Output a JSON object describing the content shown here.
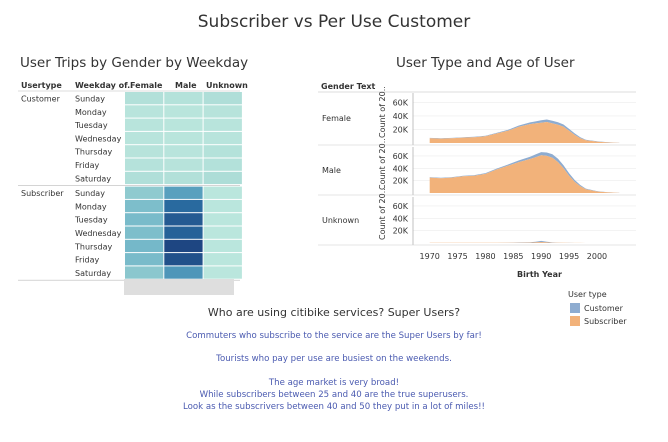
{
  "title": "Subscriber vs Per Use Customer",
  "heatmap_title": "User Trips by Gender by Weekday",
  "area_title": "User Type and Age of User",
  "story": {
    "title": "Who are using citibike services?  Super Users?",
    "lines": [
      "Commuters who subscribe to the service are the Super Users by far!",
      "Tourists who pay per use are busiest on the weekends.",
      "The age market is very broad!",
      "While subscribers between 25 and 40 are the true superusers.",
      "Look as the subscrivers between 40 and 50 they put in a lot of miles!!"
    ]
  },
  "legend": {
    "title": "User type",
    "items": [
      {
        "label": "Customer",
        "color": "#8eacd0"
      },
      {
        "label": "Subscriber",
        "color": "#f2b27a"
      }
    ]
  },
  "chart_data": [
    {
      "type": "heatmap",
      "title": "User Trips by Gender by Weekday",
      "columns": [
        "Usertype",
        "Weekday of..",
        "Female",
        "Male",
        "Unknown"
      ],
      "rows": [
        {
          "usertype": "Customer",
          "weekday": "Sunday",
          "values": [
            0.1,
            0.08,
            0.12
          ]
        },
        {
          "usertype": "",
          "weekday": "Monday",
          "values": [
            0.05,
            0.04,
            0.06
          ]
        },
        {
          "usertype": "",
          "weekday": "Tuesday",
          "values": [
            0.05,
            0.04,
            0.05
          ]
        },
        {
          "usertype": "",
          "weekday": "Wednesday",
          "values": [
            0.05,
            0.04,
            0.05
          ]
        },
        {
          "usertype": "",
          "weekday": "Thursday",
          "values": [
            0.06,
            0.05,
            0.08
          ]
        },
        {
          "usertype": "",
          "weekday": "Friday",
          "values": [
            0.07,
            0.06,
            0.09
          ]
        },
        {
          "usertype": "",
          "weekday": "Saturday",
          "values": [
            0.11,
            0.1,
            0.14
          ]
        },
        {
          "usertype": "Subscriber",
          "weekday": "Sunday",
          "values": [
            0.3,
            0.55,
            0.03
          ]
        },
        {
          "usertype": "",
          "weekday": "Monday",
          "values": [
            0.38,
            0.82,
            0.03
          ]
        },
        {
          "usertype": "",
          "weekday": "Tuesday",
          "values": [
            0.4,
            0.9,
            0.03
          ]
        },
        {
          "usertype": "",
          "weekday": "Wednesday",
          "values": [
            0.38,
            0.86,
            0.03
          ]
        },
        {
          "usertype": "",
          "weekday": "Thursday",
          "values": [
            0.42,
            1.0,
            0.03
          ]
        },
        {
          "usertype": "",
          "weekday": "Friday",
          "values": [
            0.4,
            0.95,
            0.03
          ]
        },
        {
          "usertype": "",
          "weekday": "Saturday",
          "values": [
            0.32,
            0.6,
            0.03
          ]
        }
      ]
    },
    {
      "type": "area",
      "title": "User Type and Age of User",
      "row_header": "Gender Text",
      "xlabel": "Birth Year",
      "ylabel": "Count of 20..",
      "xlim": [
        1967,
        2007
      ],
      "ylim": [
        0,
        68000
      ],
      "xticks": [
        1970,
        1975,
        1980,
        1985,
        1990,
        1995,
        2000
      ],
      "yticks": [
        "20K",
        "40K",
        "60K"
      ],
      "x": [
        1970,
        1972,
        1974,
        1976,
        1978,
        1980,
        1982,
        1984,
        1986,
        1988,
        1989,
        1990,
        1991,
        1992,
        1993,
        1994,
        1995,
        1996,
        1997,
        1998,
        2000,
        2002,
        2004
      ],
      "panels": [
        {
          "gender": "Female",
          "series": [
            {
              "name": "Subscriber",
              "values": [
                7000,
                6500,
                7000,
                8000,
                8500,
                10000,
                14000,
                18000,
                24000,
                28000,
                29000,
                30000,
                31000,
                29000,
                27000,
                24000,
                18000,
                12000,
                7000,
                4000,
                2000,
                800,
                200
              ]
            },
            {
              "name": "Customer",
              "values": [
                500,
                500,
                500,
                600,
                700,
                800,
                1000,
                1300,
                1800,
                2500,
                3000,
                3500,
                3800,
                4000,
                3800,
                3300,
                2800,
                2200,
                1500,
                900,
                500,
                300,
                100
              ]
            }
          ]
        },
        {
          "gender": "Male",
          "series": [
            {
              "name": "Subscriber",
              "values": [
                25000,
                24000,
                25000,
                27000,
                28000,
                31000,
                38000,
                44000,
                50000,
                55000,
                58000,
                61000,
                60000,
                57000,
                50000,
                40000,
                28000,
                18000,
                11000,
                6000,
                2500,
                900,
                200
              ]
            },
            {
              "name": "Customer",
              "values": [
                700,
                700,
                800,
                900,
                1000,
                1200,
                1500,
                2000,
                2800,
                3800,
                4500,
                5200,
                5600,
                5800,
                5600,
                5000,
                4000,
                3000,
                2000,
                1200,
                600,
                300,
                100
              ]
            }
          ]
        },
        {
          "gender": "Unknown",
          "series": [
            {
              "name": "Subscriber",
              "values": [
                300,
                300,
                300,
                300,
                300,
                300,
                300,
                400,
                500,
                600,
                900,
                1400,
                900,
                500,
                400,
                300,
                200,
                100,
                100,
                0,
                0,
                0,
                0
              ]
            },
            {
              "name": "Customer",
              "values": [
                200,
                200,
                200,
                200,
                200,
                200,
                200,
                300,
                400,
                600,
                1000,
                2000,
                1000,
                500,
                300,
                200,
                100,
                100,
                0,
                0,
                0,
                0,
                0
              ]
            }
          ]
        }
      ]
    }
  ]
}
